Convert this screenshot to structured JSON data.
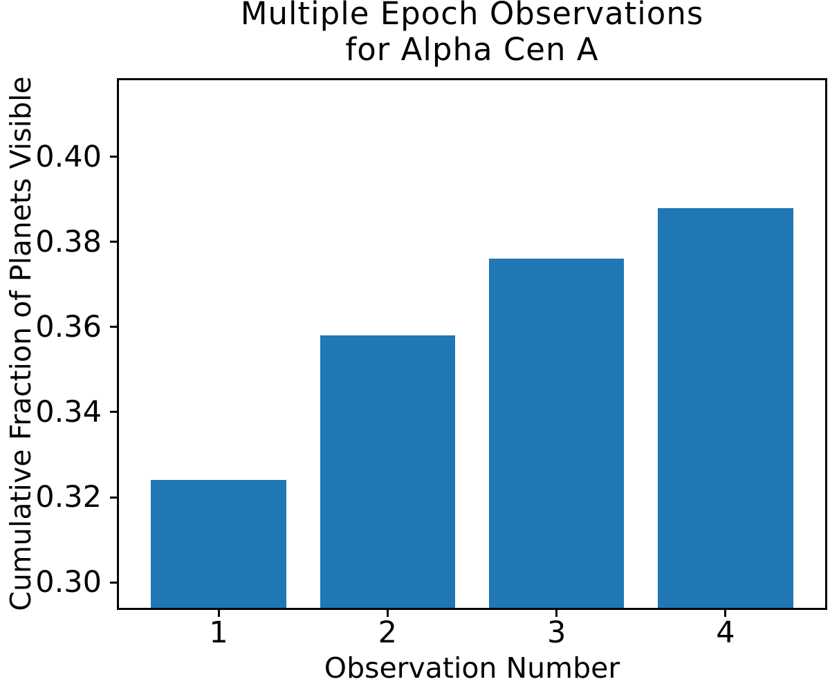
{
  "chart_data": {
    "type": "bar",
    "title": "Multiple Epoch Observations\nfor Alpha Cen A",
    "xlabel": "Observation Number",
    "ylabel": "Cumulative Fraction of Planets Visible",
    "categories": [
      "1",
      "2",
      "3",
      "4"
    ],
    "x": [
      1,
      2,
      3,
      4
    ],
    "values": [
      0.324,
      0.358,
      0.376,
      0.388
    ],
    "bar_width": 0.8,
    "xlim": [
      0.41,
      4.59
    ],
    "ylim": [
      0.294,
      0.418
    ],
    "yticks": [
      0.3,
      0.32,
      0.34,
      0.36,
      0.38,
      0.4
    ],
    "ytick_labels": [
      "0.30",
      "0.32",
      "0.34",
      "0.36",
      "0.38",
      "0.40"
    ],
    "xtick_labels": [
      "1",
      "2",
      "3",
      "4"
    ],
    "grid": false,
    "legend": "none",
    "colors": {
      "bar": "#1f77b4",
      "text": "#000000",
      "spine": "#000000",
      "background": "#ffffff"
    }
  }
}
